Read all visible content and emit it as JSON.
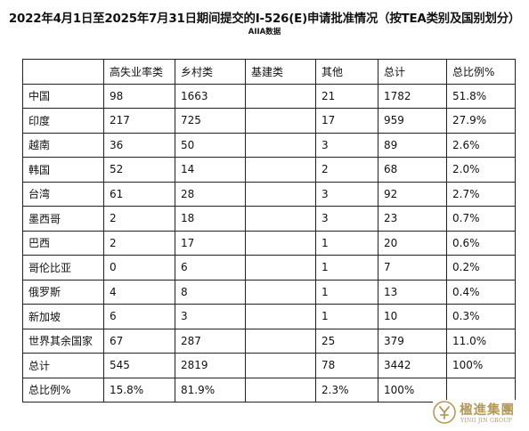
{
  "header": {
    "title": "2022年4月1日至2025年7月31日期间提交的I-526(E)申请批准情况（按TEA类别及国别划分）",
    "subtitle": "AIIA数据"
  },
  "table": {
    "columns": [
      "",
      "高失业率类",
      "乡村类",
      "基建类",
      "其他",
      "总计",
      "总比例%"
    ],
    "rows": [
      [
        "中国",
        "98",
        "1663",
        "",
        "21",
        "1782",
        "51.8%"
      ],
      [
        "印度",
        "217",
        "725",
        "",
        "17",
        "959",
        "27.9%"
      ],
      [
        "越南",
        "36",
        "50",
        "",
        "3",
        "89",
        "2.6%"
      ],
      [
        "韩国",
        "52",
        "14",
        "",
        "2",
        "68",
        "2.0%"
      ],
      [
        "台湾",
        "61",
        "28",
        "",
        "3",
        "92",
        "2.7%"
      ],
      [
        "墨西哥",
        "2",
        "18",
        "",
        "3",
        "23",
        "0.7%"
      ],
      [
        "巴西",
        "2",
        "17",
        "",
        "1",
        "20",
        "0.6%"
      ],
      [
        "哥伦比亚",
        "0",
        "6",
        "",
        "1",
        "7",
        "0.2%"
      ],
      [
        "俄罗斯",
        "4",
        "8",
        "",
        "1",
        "13",
        "0.4%"
      ],
      [
        "新加坡",
        "6",
        "3",
        "",
        "1",
        "10",
        "0.3%"
      ],
      [
        "世界其余国家",
        "67",
        "287",
        "",
        "25",
        "379",
        "11.0%"
      ],
      [
        "总计",
        "545",
        "2819",
        "",
        "78",
        "3442",
        "100%"
      ],
      [
        "总比例%",
        "15.8%",
        "81.9%",
        "",
        "2.3%",
        "100%",
        ""
      ]
    ]
  },
  "logo": {
    "name_cn": "楹進集團",
    "name_en": "YING JIN GROUP",
    "color": "#b59a57"
  }
}
